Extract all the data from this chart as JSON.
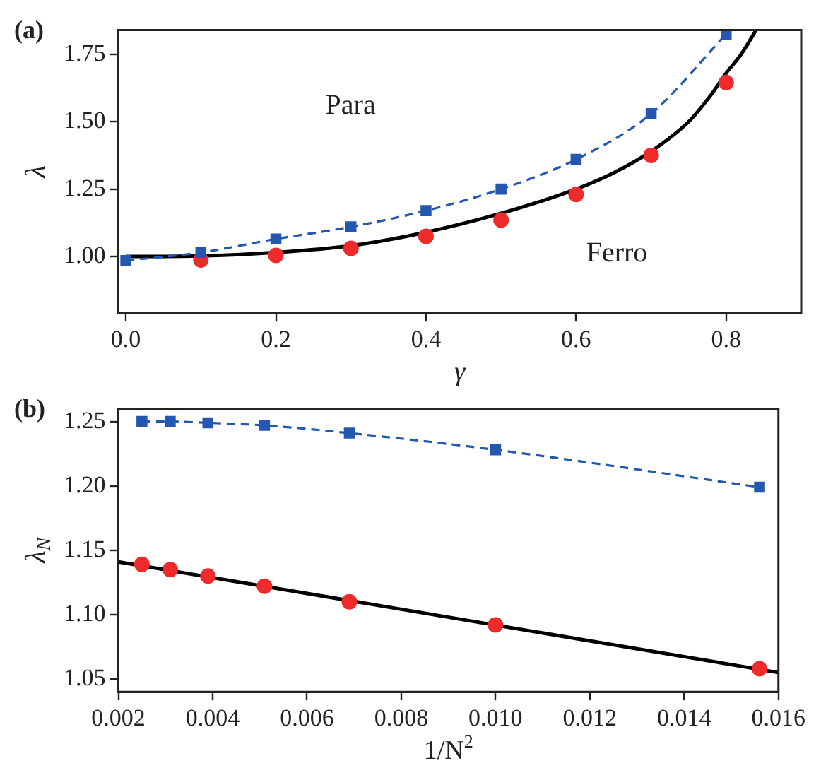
{
  "chart_data": [
    {
      "type": "line",
      "title": "(a)",
      "xlabel": "γ",
      "ylabel": "λ",
      "xlim": [
        -0.01,
        0.9
      ],
      "ylim": [
        0.79,
        1.84
      ],
      "xticks": [
        {
          "value": 0,
          "label": "0.0"
        },
        0.2,
        0.4,
        0.6,
        0.8
      ],
      "yticks": [
        {
          "value": 1,
          "label": "1.00"
        },
        1.25,
        {
          "value": 1.5,
          "label": "1.50"
        },
        1.75
      ],
      "grid": false,
      "legend": false,
      "annotations": [
        "Para",
        "Ferro"
      ],
      "series": [
        {
          "color": "#000000",
          "marker": "none",
          "line_style": "solid",
          "x": [
            0,
            0.1,
            0.2,
            0.3,
            0.4,
            0.5,
            0.6,
            0.65,
            0.7,
            0.75,
            0.78,
            0.8,
            0.82,
            0.84
          ],
          "values": [
            1.0,
            1.002,
            1.015,
            1.04,
            1.09,
            1.16,
            1.25,
            1.31,
            1.39,
            1.5,
            1.6,
            1.68,
            1.75,
            1.84
          ]
        },
        {
          "color": "#2458b0",
          "marker": "square",
          "line_style": "dashed",
          "x": [
            0,
            0.1,
            0.2,
            0.3,
            0.4,
            0.5,
            0.6,
            0.7,
            0.8
          ],
          "values": [
            0.985,
            1.015,
            1.065,
            1.11,
            1.17,
            1.25,
            1.36,
            1.53,
            1.825
          ]
        },
        {
          "type": "scatter",
          "color": "#ee2a2a",
          "marker": "circle",
          "x": [
            0.1,
            0.2,
            0.3,
            0.4,
            0.5,
            0.6,
            0.7,
            0.8
          ],
          "values": [
            0.987,
            1.004,
            1.03,
            1.075,
            1.135,
            1.23,
            1.375,
            1.645
          ]
        }
      ]
    },
    {
      "type": "line",
      "title": "(b)",
      "xlabel": "1/N$^{2}$",
      "ylabel": "λ$_{N}$",
      "xlim": [
        0.002,
        0.016
      ],
      "ylim": [
        1.04,
        1.26
      ],
      "xticks": [
        0.002,
        0.004,
        0.006,
        0.008,
        {
          "value": 0.01,
          "label": "0.010"
        },
        0.012,
        0.014,
        0.016
      ],
      "yticks": [
        1.05,
        {
          "value": 1.1,
          "label": "1.10"
        },
        1.15,
        {
          "value": 1.2,
          "label": "1.20"
        },
        1.25
      ],
      "grid": false,
      "legend": false,
      "series": [
        {
          "color": "#000000",
          "marker": "none",
          "line_style": "solid",
          "x": [
            0.002,
            0.016
          ],
          "values": [
            1.141,
            1.055
          ]
        },
        {
          "color": "#2458b0",
          "marker": "square",
          "line_style": "dashed",
          "x": [
            0.0025,
            0.0031,
            0.0039,
            0.0051,
            0.0069,
            0.01,
            0.0156
          ],
          "values": [
            1.25,
            1.25,
            1.249,
            1.247,
            1.241,
            1.228,
            1.199
          ]
        },
        {
          "type": "scatter",
          "color": "#ee2a2a",
          "marker": "circle",
          "x": [
            0.0025,
            0.0031,
            0.0039,
            0.0051,
            0.0069,
            0.01,
            0.0156
          ],
          "values": [
            1.139,
            1.135,
            1.13,
            1.122,
            1.11,
            1.092,
            1.058
          ]
        }
      ]
    }
  ]
}
